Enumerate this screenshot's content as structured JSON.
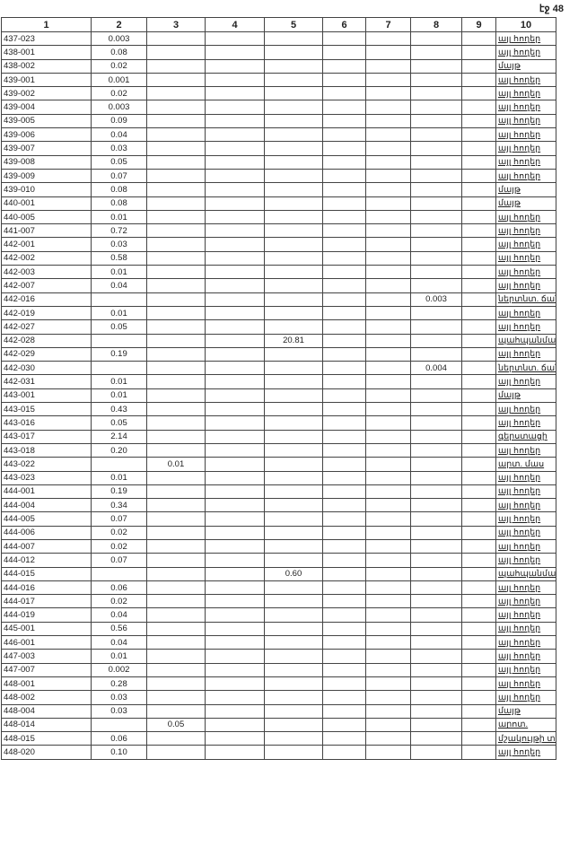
{
  "page_label": "էջ 48",
  "headers": [
    "1",
    "2",
    "3",
    "4",
    "5",
    "6",
    "7",
    "8",
    "9",
    "10"
  ],
  "rows": [
    [
      "437-023",
      "0.003",
      "",
      "",
      "",
      "",
      "",
      "",
      "",
      "այլ հողեր"
    ],
    [
      "438-001",
      "0.08",
      "",
      "",
      "",
      "",
      "",
      "",
      "",
      "այլ հողեր"
    ],
    [
      "438-002",
      "0.02",
      "",
      "",
      "",
      "",
      "",
      "",
      "",
      "մայթ"
    ],
    [
      "439-001",
      "0.001",
      "",
      "",
      "",
      "",
      "",
      "",
      "",
      "այլ հողեր"
    ],
    [
      "439-002",
      "0.02",
      "",
      "",
      "",
      "",
      "",
      "",
      "",
      "այլ հողեր"
    ],
    [
      "439-004",
      "0.003",
      "",
      "",
      "",
      "",
      "",
      "",
      "",
      "այլ հողեր"
    ],
    [
      "439-005",
      "0.09",
      "",
      "",
      "",
      "",
      "",
      "",
      "",
      "այլ հողեր"
    ],
    [
      "439-006",
      "0.04",
      "",
      "",
      "",
      "",
      "",
      "",
      "",
      "այլ հողեր"
    ],
    [
      "439-007",
      "0.03",
      "",
      "",
      "",
      "",
      "",
      "",
      "",
      "այլ հողեր"
    ],
    [
      "439-008",
      "0.05",
      "",
      "",
      "",
      "",
      "",
      "",
      "",
      "այլ հողեր"
    ],
    [
      "439-009",
      "0.07",
      "",
      "",
      "",
      "",
      "",
      "",
      "",
      "այլ հողեր"
    ],
    [
      "439-010",
      "0.08",
      "",
      "",
      "",
      "",
      "",
      "",
      "",
      "մայթ"
    ],
    [
      "440-001",
      "0.08",
      "",
      "",
      "",
      "",
      "",
      "",
      "",
      "մայթ"
    ],
    [
      "440-005",
      "0.01",
      "",
      "",
      "",
      "",
      "",
      "",
      "",
      "այլ հողեր"
    ],
    [
      "441-007",
      "0.72",
      "",
      "",
      "",
      "",
      "",
      "",
      "",
      "այլ հողեր"
    ],
    [
      "442-001",
      "0.03",
      "",
      "",
      "",
      "",
      "",
      "",
      "",
      "այլ հողեր"
    ],
    [
      "442-002",
      "0.58",
      "",
      "",
      "",
      "",
      "",
      "",
      "",
      "այլ հողեր"
    ],
    [
      "442-003",
      "0.01",
      "",
      "",
      "",
      "",
      "",
      "",
      "",
      "այլ հողեր"
    ],
    [
      "442-007",
      "0.04",
      "",
      "",
      "",
      "",
      "",
      "",
      "",
      "այլ հողեր"
    ],
    [
      "442-016",
      "",
      "",
      "",
      "",
      "",
      "",
      "0.003",
      "",
      "ներտնտ. ճանապ. ցանց"
    ],
    [
      "442-019",
      "0.01",
      "",
      "",
      "",
      "",
      "",
      "",
      "",
      "այլ հողեր"
    ],
    [
      "442-027",
      "0.05",
      "",
      "",
      "",
      "",
      "",
      "",
      "",
      "այլ հողեր"
    ],
    [
      "442-028",
      "",
      "",
      "",
      "20.81",
      "",
      "",
      "",
      "",
      "պահպանման"
    ],
    [
      "442-029",
      "0.19",
      "",
      "",
      "",
      "",
      "",
      "",
      "",
      "այլ հողեր"
    ],
    [
      "442-030",
      "",
      "",
      "",
      "",
      "",
      "",
      "0.004",
      "",
      "ներտնտ. ճանապ. ցանց"
    ],
    [
      "442-031",
      "0.01",
      "",
      "",
      "",
      "",
      "",
      "",
      "",
      "այլ հողեր"
    ],
    [
      "443-001",
      "0.01",
      "",
      "",
      "",
      "",
      "",
      "",
      "",
      "մայթ"
    ],
    [
      "443-015",
      "0.43",
      "",
      "",
      "",
      "",
      "",
      "",
      "",
      "այլ հողեր"
    ],
    [
      "443-016",
      "0.05",
      "",
      "",
      "",
      "",
      "",
      "",
      "",
      "այլ հողեր"
    ],
    [
      "443-017",
      "2.14",
      "",
      "",
      "",
      "",
      "",
      "",
      "",
      "գերստացի"
    ],
    [
      "443-018",
      "0.20",
      "",
      "",
      "",
      "",
      "",
      "",
      "",
      "այլ հողեր"
    ],
    [
      "443-022",
      "",
      "0.01",
      "",
      "",
      "",
      "",
      "",
      "",
      "արտ. մաս"
    ],
    [
      "443-023",
      "0.01",
      "",
      "",
      "",
      "",
      "",
      "",
      "",
      "այլ հողեր"
    ],
    [
      "444-001",
      "0.19",
      "",
      "",
      "",
      "",
      "",
      "",
      "",
      "այլ հողեր"
    ],
    [
      "444-004",
      "0.34",
      "",
      "",
      "",
      "",
      "",
      "",
      "",
      "այլ հողեր"
    ],
    [
      "444-005",
      "0.07",
      "",
      "",
      "",
      "",
      "",
      "",
      "",
      "այլ հողեր"
    ],
    [
      "444-006",
      "0.02",
      "",
      "",
      "",
      "",
      "",
      "",
      "",
      "այլ հողեր"
    ],
    [
      "444-007",
      "0.02",
      "",
      "",
      "",
      "",
      "",
      "",
      "",
      "այլ հողեր"
    ],
    [
      "444-012",
      "0.07",
      "",
      "",
      "",
      "",
      "",
      "",
      "",
      "այլ հողեր"
    ],
    [
      "444-015",
      "",
      "",
      "",
      "0.60",
      "",
      "",
      "",
      "",
      "պահպանման"
    ],
    [
      "444-016",
      "0.06",
      "",
      "",
      "",
      "",
      "",
      "",
      "",
      "այլ հողեր"
    ],
    [
      "444-017",
      "0.02",
      "",
      "",
      "",
      "",
      "",
      "",
      "",
      "այլ հողեր"
    ],
    [
      "444-019",
      "0.04",
      "",
      "",
      "",
      "",
      "",
      "",
      "",
      "այլ հողեր"
    ],
    [
      "445-001",
      "0.56",
      "",
      "",
      "",
      "",
      "",
      "",
      "",
      "այլ հողեր"
    ],
    [
      "446-001",
      "0.04",
      "",
      "",
      "",
      "",
      "",
      "",
      "",
      "այլ հողեր"
    ],
    [
      "447-003",
      "0.01",
      "",
      "",
      "",
      "",
      "",
      "",
      "",
      "այլ հողեր"
    ],
    [
      "447-007",
      "0.002",
      "",
      "",
      "",
      "",
      "",
      "",
      "",
      "այլ հողեր"
    ],
    [
      "448-001",
      "0.28",
      "",
      "",
      "",
      "",
      "",
      "",
      "",
      "այլ հողեր"
    ],
    [
      "448-002",
      "0.03",
      "",
      "",
      "",
      "",
      "",
      "",
      "",
      "այլ հողեր"
    ],
    [
      "448-004",
      "0.03",
      "",
      "",
      "",
      "",
      "",
      "",
      "",
      "մայթ"
    ],
    [
      "448-014",
      "",
      "0.05",
      "",
      "",
      "",
      "",
      "",
      "",
      "արոտ."
    ],
    [
      "448-015",
      "0.06",
      "",
      "",
      "",
      "",
      "",
      "",
      "",
      "մշակույթի տուն"
    ],
    [
      "448-020",
      "0.10",
      "",
      "",
      "",
      "",
      "",
      "",
      "",
      "այլ հողեր"
    ]
  ]
}
